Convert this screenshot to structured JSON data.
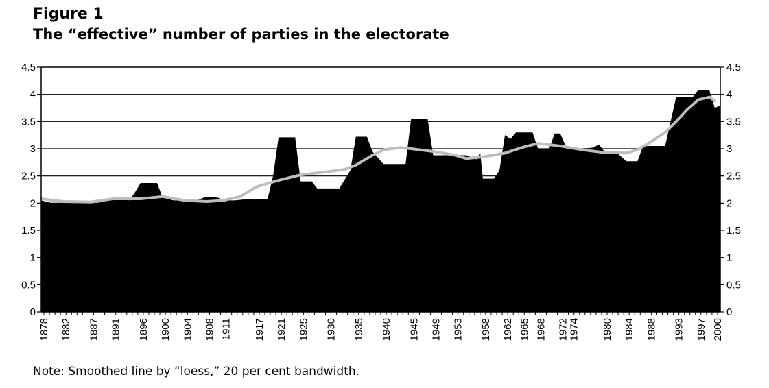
{
  "figure_label": "Figure 1",
  "note": "Note: Smoothed line by “loess,” 20 per cent bandwidth.",
  "chart_data": {
    "type": "area",
    "title": "The “effective” number of parties in the electorate",
    "xlabel": "",
    "ylabel": "",
    "ylim": [
      0,
      4.5
    ],
    "yticks": [
      "0",
      "0.5",
      "1",
      "1.5",
      "2",
      "2.5",
      "3",
      "3.5",
      "4",
      "4.5"
    ],
    "xlim": [
      1878,
      2001
    ],
    "xticks": [
      "1878",
      "1882",
      "1887",
      "1891",
      "1896",
      "1900",
      "1904",
      "1908",
      "1911",
      "1917",
      "1921",
      "1925",
      "1930",
      "1935",
      "1940",
      "1945",
      "1949",
      "1953",
      "1958",
      "1962",
      "1965",
      "1968",
      "1972",
      "1974",
      "1980",
      "1984",
      "1988",
      "1993",
      "1997",
      "2000"
    ],
    "grid": true,
    "series": [
      {
        "kind": "area",
        "color": "#000000",
        "x": [
          1878,
          1880,
          1882,
          1884,
          1886,
          1888,
          1890,
          1892,
          1894,
          1895,
          1896,
          1898,
          1899,
          1900,
          1902,
          1904,
          1906,
          1908,
          1910,
          1911,
          1913,
          1915,
          1917,
          1919,
          1920,
          1921,
          1923,
          1924,
          1925,
          1927,
          1928,
          1930,
          1932,
          1934,
          1935,
          1937,
          1938,
          1940,
          1942,
          1944,
          1945,
          1947,
          1948,
          1949,
          1951,
          1953,
          1955,
          1957,
          1957.5,
          1958,
          1960,
          1961,
          1962,
          1963,
          1964,
          1965,
          1967,
          1968,
          1970,
          1971,
          1972,
          1973,
          1974,
          1976,
          1978,
          1979,
          1980,
          1982,
          1984,
          1986,
          1987,
          1988,
          1990,
          1991,
          1993,
          1995,
          1996,
          1997,
          1999,
          2000,
          2001
        ],
        "y": [
          2.05,
          2.0,
          2.0,
          2.0,
          2.0,
          2.0,
          2.05,
          2.1,
          2.05,
          2.2,
          2.37,
          2.37,
          2.37,
          2.1,
          2.05,
          2.05,
          2.05,
          2.12,
          2.1,
          2.05,
          2.05,
          2.07,
          2.07,
          2.07,
          2.5,
          3.21,
          3.21,
          3.21,
          2.4,
          2.4,
          2.27,
          2.27,
          2.27,
          2.6,
          3.22,
          3.22,
          2.95,
          2.72,
          2.72,
          2.72,
          3.55,
          3.55,
          3.55,
          2.88,
          2.88,
          2.88,
          2.88,
          2.8,
          2.95,
          2.45,
          2.45,
          2.6,
          3.25,
          3.18,
          3.3,
          3.3,
          3.3,
          3.0,
          3.0,
          3.28,
          3.28,
          3.05,
          3.0,
          3.0,
          3.02,
          3.08,
          2.95,
          2.95,
          2.77,
          2.77,
          3.05,
          3.05,
          3.05,
          3.05,
          3.95,
          3.95,
          3.95,
          4.08,
          4.08,
          3.75,
          3.8
        ]
      },
      {
        "kind": "line",
        "color": "#bdbdbd",
        "x": [
          1878,
          1882,
          1887,
          1891,
          1896,
          1900,
          1904,
          1908,
          1911,
          1914,
          1917,
          1921,
          1925,
          1930,
          1933,
          1935,
          1938,
          1940,
          1943,
          1945,
          1949,
          1953,
          1955,
          1958,
          1962,
          1965,
          1968,
          1972,
          1976,
          1980,
          1984,
          1986,
          1988,
          1991,
          1993,
          1995,
          1997,
          1999,
          2000
        ],
        "y": [
          2.08,
          2.03,
          2.02,
          2.08,
          2.08,
          2.12,
          2.05,
          2.03,
          2.05,
          2.12,
          2.3,
          2.42,
          2.52,
          2.58,
          2.62,
          2.7,
          2.88,
          2.98,
          3.02,
          3.0,
          2.95,
          2.88,
          2.82,
          2.85,
          2.92,
          3.02,
          3.1,
          3.05,
          2.98,
          2.93,
          2.92,
          2.98,
          3.1,
          3.3,
          3.5,
          3.72,
          3.9,
          3.95,
          3.88
        ]
      }
    ]
  }
}
